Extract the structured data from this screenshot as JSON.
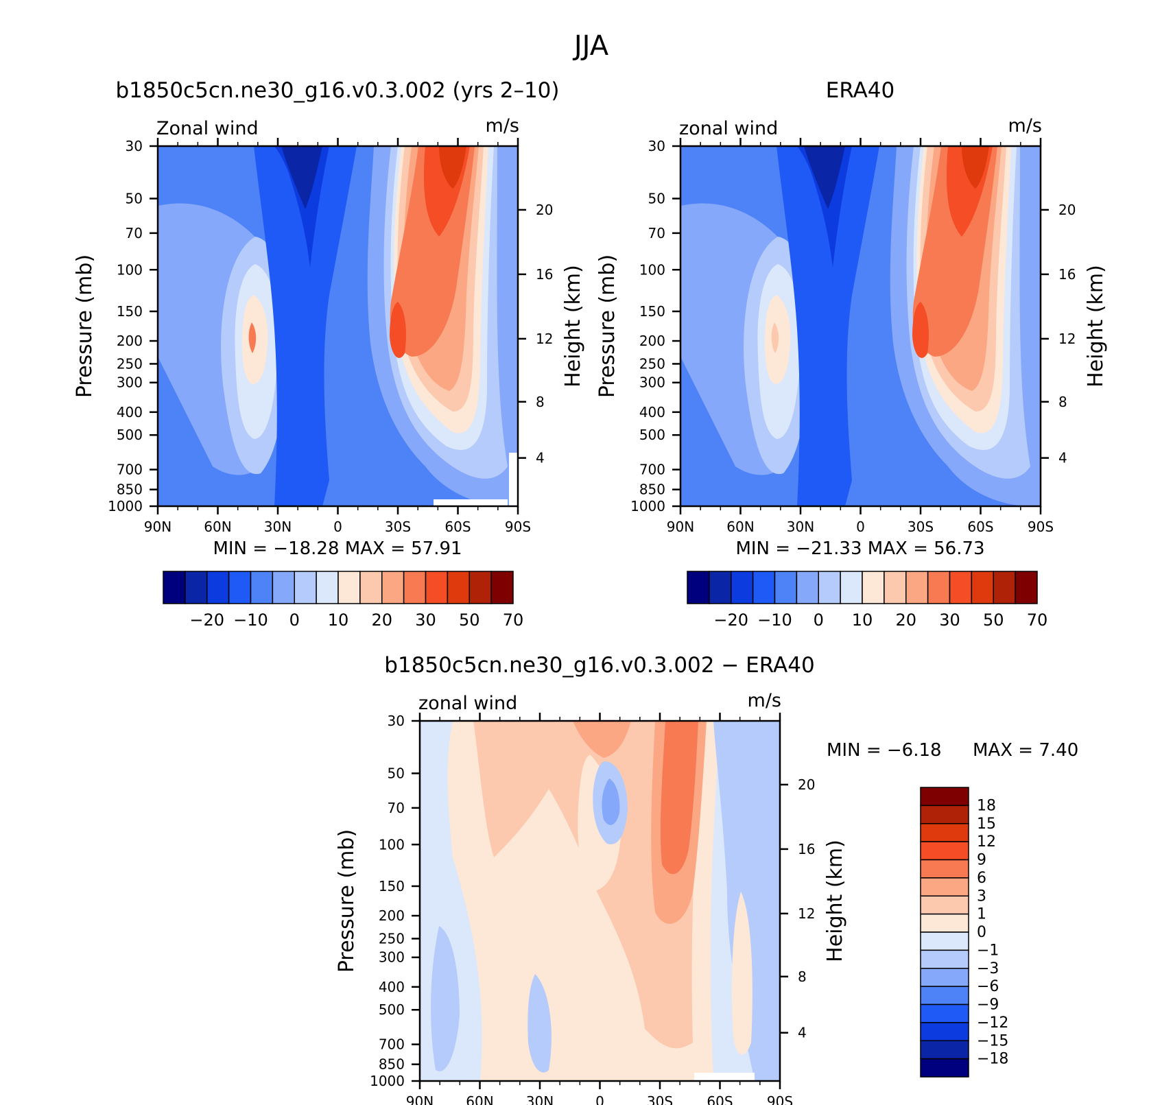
{
  "figure": {
    "title": "JJA"
  },
  "lat_ticks": [
    "90N",
    "60N",
    "30N",
    "0",
    "30S",
    "60S",
    "90S"
  ],
  "pressure_ticks": [
    "30",
    "50",
    "70",
    "100",
    "150",
    "200",
    "250",
    "300",
    "400",
    "500",
    "700",
    "850",
    "1000"
  ],
  "height_ticks": [
    "20",
    "16",
    "12",
    "8",
    "4"
  ],
  "panels": [
    {
      "id": "model",
      "title": "b1850c5cn.ne30_g16.v0.3.002 (yrs 2–10)",
      "left_label": "Zonal wind",
      "right_label": "m/s",
      "ylabel": "Pressure (mb)",
      "y2label": "Height (km)",
      "stats": "MIN =  −18.28   MAX =   57.91",
      "colorbar_labels": [
        "−20",
        "−10",
        "0",
        "10",
        "20",
        "30",
        "50",
        "70"
      ]
    },
    {
      "id": "obs",
      "title": "ERA40",
      "left_label": "zonal wind",
      "right_label": "m/s",
      "ylabel": "Pressure (mb)",
      "y2label": "Height (km)",
      "stats": "MIN =  −21.33   MAX =   56.73",
      "colorbar_labels": [
        "−20",
        "−10",
        "0",
        "10",
        "20",
        "30",
        "50",
        "70"
      ]
    },
    {
      "id": "diff",
      "title": "b1850c5cn.ne30_g16.v0.3.002 − ERA40",
      "left_label": "zonal wind",
      "right_label": "m/s",
      "ylabel": "Pressure (mb)",
      "y2label": "Height (km)",
      "stats_min": "MIN =    −6.18",
      "stats_max": "MAX =     7.40",
      "colorbar_labels": [
        "18",
        "15",
        "12",
        "9",
        "6",
        "3",
        "1",
        "0",
        "−1",
        "−3",
        "−6",
        "−9",
        "−12",
        "−15",
        "−18"
      ]
    }
  ],
  "chart_data": [
    {
      "type": "heatmap",
      "title": "b1850c5cn.ne30_g16.v0.3.002 (yrs 2–10)",
      "x": [
        "90N",
        "60N",
        "30N",
        "0",
        "30S",
        "60S",
        "90S"
      ],
      "ylabel": "Pressure (mb)",
      "levels": [
        -25,
        -20,
        -15,
        -10,
        -5,
        0,
        5,
        10,
        15,
        20,
        25,
        30,
        40,
        50,
        60,
        70,
        80
      ],
      "colors": [
        "#00007f",
        "#0a26a6",
        "#0c3be0",
        "#1f5af7",
        "#4e82f7",
        "#86a8fa",
        "#b5cbfb",
        "#dbe8fb",
        "#fde7d6",
        "#fcc9ae",
        "#fba783",
        "#f87a53",
        "#f54d25",
        "#de3a0d",
        "#b02208",
        "#7f0000"
      ],
      "min": -18.28,
      "max": 57.91
    },
    {
      "type": "heatmap",
      "title": "ERA40",
      "x": [
        "90N",
        "60N",
        "30N",
        "0",
        "30S",
        "60S",
        "90S"
      ],
      "ylabel": "Pressure (mb)",
      "levels": [
        -25,
        -20,
        -15,
        -10,
        -5,
        0,
        5,
        10,
        15,
        20,
        25,
        30,
        40,
        50,
        60,
        70,
        80
      ],
      "min": -21.33,
      "max": 56.73
    },
    {
      "type": "heatmap",
      "title": "b1850c5cn.ne30_g16.v0.3.002 − ERA40",
      "x": [
        "90N",
        "60N",
        "30N",
        "0",
        "30S",
        "60S",
        "90S"
      ],
      "ylabel": "Pressure (mb)",
      "levels": [
        -18,
        -15,
        -12,
        -9,
        -6,
        -3,
        -1,
        0,
        1,
        3,
        6,
        9,
        12,
        15,
        18
      ],
      "colors": [
        "#00007f",
        "#0a26a6",
        "#0c3be0",
        "#1f5af7",
        "#4e82f7",
        "#86a8fa",
        "#b5cbfb",
        "#dbe8fb",
        "#fde7d6",
        "#fcc9ae",
        "#fba783",
        "#f87a53",
        "#f54d25",
        "#de3a0d",
        "#b02208",
        "#7f0000"
      ],
      "min": -6.18,
      "max": 7.4
    }
  ]
}
